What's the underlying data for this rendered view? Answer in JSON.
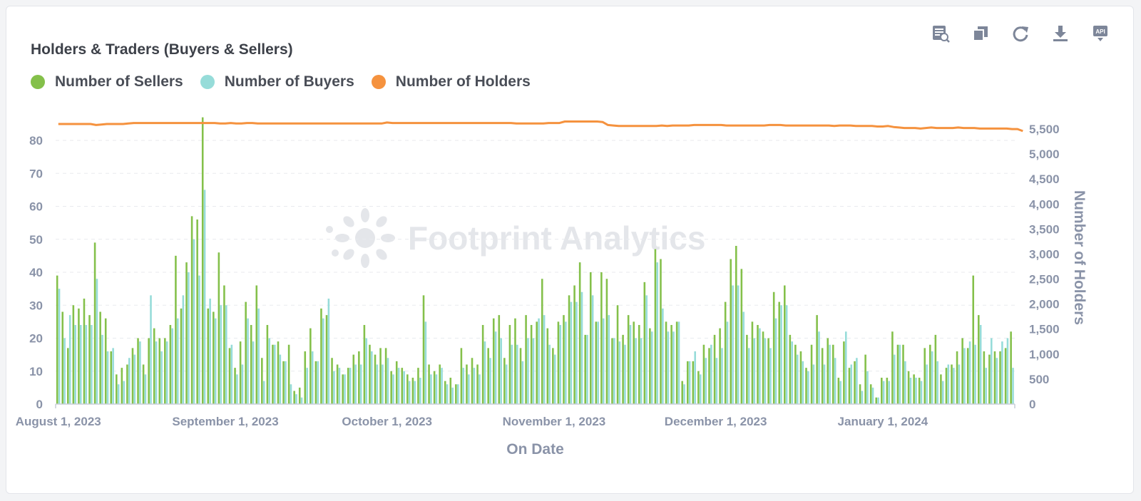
{
  "chart_data": {
    "type": "bar+line",
    "title": "Holders & Traders (Buyers & Sellers)",
    "xlabel": "On Date",
    "ylabel": "",
    "y2label": "Number of Holders",
    "x_start": "2023-08-01",
    "x_end": "2024-01-23",
    "x_ticks": [
      "August 1, 2023",
      "September 1, 2023",
      "October 1, 2023",
      "November 1, 2023",
      "December 1, 2023",
      "January 1, 2024"
    ],
    "y_ticks": [
      "0",
      "10",
      "20",
      "30",
      "40",
      "50",
      "60",
      "70",
      "80"
    ],
    "y2_ticks": [
      "0",
      "500",
      "1,000",
      "1,500",
      "2,000",
      "2,500",
      "3,000",
      "3,500",
      "4,000",
      "4,500",
      "5,000",
      "5,500"
    ],
    "ylim": [
      0,
      88
    ],
    "y2lim": [
      0,
      5800
    ],
    "series": [
      {
        "name": "Number of Sellers",
        "type": "bar",
        "color": "#84c04a",
        "values": [
          39,
          28,
          17,
          30,
          29,
          32,
          27,
          49,
          28,
          26,
          16,
          9,
          11,
          12,
          17,
          20,
          12,
          20,
          23,
          20,
          20,
          24,
          45,
          29,
          43,
          57,
          56,
          87,
          29,
          28,
          46,
          36,
          17,
          11,
          19,
          31,
          24,
          36,
          14,
          24,
          18,
          19,
          13,
          18,
          4,
          5,
          16,
          23,
          13,
          29,
          27,
          14,
          12,
          9,
          11,
          15,
          16,
          24,
          18,
          15,
          17,
          17,
          10,
          13,
          11,
          9,
          8,
          11,
          33,
          12,
          10,
          12,
          7,
          8,
          6,
          17,
          12,
          14,
          12,
          24,
          17,
          26,
          27,
          14,
          24,
          26,
          17,
          27,
          24,
          25,
          38,
          23,
          17,
          25,
          27,
          33,
          36,
          43,
          21,
          40,
          25,
          40,
          38,
          20,
          30,
          21,
          27,
          25,
          24,
          37,
          23,
          47,
          44,
          25,
          24,
          25,
          7,
          13,
          13,
          10,
          18,
          17,
          21,
          23,
          31,
          44,
          48,
          41,
          21,
          25,
          24,
          22,
          20,
          34,
          31,
          36,
          21,
          18,
          16,
          11,
          18,
          27,
          17,
          20,
          18,
          8,
          19,
          11,
          13,
          6,
          15,
          6,
          2,
          8,
          8,
          22,
          18,
          18,
          10,
          9,
          8,
          17,
          18,
          21,
          9,
          11,
          12,
          16,
          20,
          17,
          39,
          27,
          16,
          15,
          16,
          16,
          17,
          22
        ],
        "note": "daily bars"
      },
      {
        "name": "Number of Buyers",
        "type": "bar",
        "color": "#96dcd9",
        "values": [
          35,
          20,
          27,
          24,
          24,
          24,
          24,
          38,
          21,
          16,
          17,
          6,
          7,
          14,
          15,
          19,
          9,
          33,
          19,
          16,
          19,
          23,
          26,
          33,
          40,
          50,
          39,
          65,
          32,
          26,
          30,
          30,
          18,
          9,
          12,
          26,
          19,
          29,
          7,
          20,
          18,
          15,
          13,
          6,
          3,
          2,
          11,
          16,
          13,
          26,
          32,
          10,
          11,
          9,
          11,
          12,
          12,
          20,
          16,
          12,
          12,
          14,
          9,
          11,
          10,
          7,
          7,
          8,
          25,
          9,
          9,
          11,
          6,
          5,
          6,
          11,
          9,
          11,
          9,
          19,
          14,
          22,
          20,
          12,
          18,
          18,
          13,
          20,
          20,
          26,
          27,
          18,
          15,
          24,
          25,
          31,
          31,
          34,
          21,
          33,
          25,
          26,
          27,
          20,
          19,
          18,
          24,
          20,
          20,
          33,
          22,
          43,
          29,
          22,
          22,
          25,
          6,
          13,
          16,
          9,
          14,
          18,
          14,
          17,
          25,
          36,
          36,
          28,
          17,
          20,
          23,
          20,
          17,
          26,
          30,
          30,
          19,
          15,
          13,
          10,
          12,
          22,
          12,
          18,
          14,
          7,
          22,
          12,
          14,
          4,
          10,
          5,
          2,
          7,
          7,
          15,
          18,
          13,
          8,
          8,
          7,
          12,
          16,
          13,
          7,
          12,
          11,
          12,
          17,
          19,
          18,
          24,
          11,
          20,
          14,
          19,
          20,
          11
        ]
      },
      {
        "name": "Number of Holders",
        "type": "line",
        "color": "#f5923e",
        "values": [
          5600,
          5600,
          5600,
          5600,
          5600,
          5600,
          5600,
          5580,
          5590,
          5600,
          5600,
          5600,
          5600,
          5610,
          5620,
          5620,
          5620,
          5620,
          5620,
          5620,
          5620,
          5620,
          5620,
          5620,
          5620,
          5620,
          5620,
          5620,
          5620,
          5620,
          5610,
          5610,
          5620,
          5610,
          5610,
          5620,
          5620,
          5610,
          5610,
          5610,
          5610,
          5610,
          5610,
          5610,
          5610,
          5610,
          5610,
          5610,
          5610,
          5610,
          5610,
          5610,
          5610,
          5610,
          5610,
          5610,
          5610,
          5610,
          5610,
          5610,
          5610,
          5630,
          5620,
          5620,
          5620,
          5620,
          5620,
          5620,
          5620,
          5620,
          5620,
          5620,
          5620,
          5620,
          5620,
          5620,
          5620,
          5620,
          5620,
          5620,
          5620,
          5620,
          5620,
          5620,
          5620,
          5610,
          5610,
          5610,
          5610,
          5610,
          5610,
          5620,
          5620,
          5620,
          5650,
          5650,
          5650,
          5650,
          5650,
          5650,
          5650,
          5640,
          5580,
          5570,
          5560,
          5560,
          5560,
          5560,
          5560,
          5560,
          5560,
          5560,
          5570,
          5560,
          5570,
          5570,
          5570,
          5570,
          5580,
          5580,
          5580,
          5580,
          5580,
          5580,
          5570,
          5570,
          5570,
          5570,
          5570,
          5570,
          5570,
          5570,
          5580,
          5580,
          5580,
          5570,
          5570,
          5570,
          5570,
          5570,
          5570,
          5570,
          5570,
          5570,
          5560,
          5570,
          5570,
          5570,
          5560,
          5560,
          5560,
          5560,
          5550,
          5550,
          5560,
          5540,
          5530,
          5520,
          5520,
          5520,
          5510,
          5520,
          5530,
          5520,
          5520,
          5520,
          5520,
          5530,
          5520,
          5520,
          5520,
          5510,
          5510,
          5510,
          5510,
          5510,
          5510,
          5500,
          5500,
          5460
        ]
      }
    ],
    "legend_position": "top-left",
    "grid": true,
    "watermark": "Footprint Analytics"
  },
  "toolbar": {
    "icons": [
      "view-data-icon",
      "duplicate-icon",
      "refresh-icon",
      "download-icon",
      "api-icon"
    ]
  }
}
